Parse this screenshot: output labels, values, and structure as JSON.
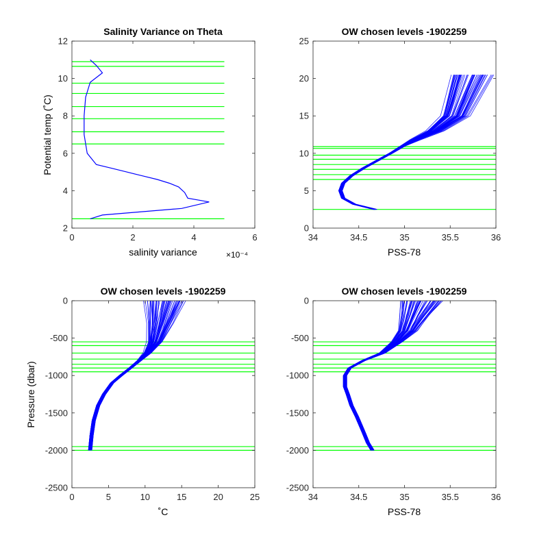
{
  "figure": {
    "background": "#ffffff",
    "data_color": "#0000ff",
    "level_color": "#00ff00"
  },
  "chart_data": [
    {
      "type": "line",
      "title": "Salinity Variance on Theta",
      "xlabel": "salinity variance",
      "ylabel": "Potential temp (˚C)",
      "xlim": [
        0,
        6
      ],
      "ylim": [
        2,
        12
      ],
      "xticks": [
        0,
        2,
        4,
        6
      ],
      "yticks": [
        2,
        4,
        6,
        8,
        10,
        12
      ],
      "x_exponent_label": "×10⁻⁴",
      "series": [
        {
          "x": [
            4.5,
            3.8,
            3.7,
            3.5,
            3.2,
            2.8,
            2.3,
            1.8,
            1.3,
            0.8,
            0.5,
            0.4,
            0.4,
            0.45,
            0.6,
            1.0,
            0.8,
            0.6
          ],
          "y": [
            3.4,
            3.6,
            3.9,
            4.2,
            4.4,
            4.6,
            4.8,
            5.0,
            5.2,
            5.4,
            6.0,
            7.0,
            8.0,
            9.0,
            9.8,
            10.3,
            10.7,
            11.0
          ]
        }
      ],
      "tail": {
        "x": [
          4.5,
          3.6,
          1.0,
          0.6
        ],
        "y": [
          3.4,
          3.05,
          2.7,
          2.5
        ]
      },
      "levels": [
        2.5,
        6.5,
        7.15,
        7.85,
        8.5,
        9.2,
        9.75,
        10.65,
        10.9
      ],
      "level_xrange": [
        0,
        5
      ]
    },
    {
      "type": "line",
      "title": "OW chosen levels -1902259",
      "xlabel": "PSS-78",
      "ylabel": "",
      "xlim": [
        34,
        36
      ],
      "ylim": [
        0,
        25
      ],
      "xticks": [
        34,
        34.5,
        35,
        35.5,
        36
      ],
      "yticks": [
        0,
        5,
        10,
        15,
        20,
        25
      ],
      "series": [
        {
          "name": "",
          "x": [
            34.68,
            34.45,
            34.33,
            34.3,
            34.33,
            34.42,
            34.55,
            34.7,
            34.85,
            34.98,
            35.1,
            35.3,
            35.5,
            35.65
          ],
          "y": [
            2.5,
            3.2,
            4.0,
            5.0,
            6.0,
            7.0,
            8.0,
            9.0,
            10.0,
            11.0,
            11.8,
            13.0,
            15.0,
            20.5
          ]
        }
      ],
      "levels": [
        2.5,
        6.5,
        7.15,
        7.85,
        8.5,
        9.2,
        9.75,
        10.65,
        10.9
      ],
      "level_xrange": [
        34,
        36
      ]
    },
    {
      "type": "line",
      "title": "OW chosen levels -1902259",
      "xlabel": "˚C",
      "ylabel": "Pressure (dbar)",
      "xlim": [
        0,
        25
      ],
      "ylim": [
        -2500,
        0
      ],
      "xticks": [
        0,
        5,
        10,
        15,
        20,
        25
      ],
      "yticks": [
        -2500,
        -2000,
        -1500,
        -1000,
        -500,
        0
      ],
      "series": [
        {
          "name": "",
          "x": [
            2.5,
            2.7,
            3.0,
            3.6,
            4.4,
            5.5,
            6.7,
            8.0,
            9.2,
            10.2,
            11.0,
            11.4,
            11.7
          ],
          "y": [
            -2000,
            -1800,
            -1600,
            -1400,
            -1250,
            -1100,
            -1000,
            -900,
            -800,
            -700,
            -550,
            -300,
            0
          ]
        }
      ],
      "levels": [
        -2000,
        -1950,
        -950,
        -900,
        -850,
        -780,
        -700,
        -600,
        -550
      ],
      "level_xrange": [
        0,
        25
      ]
    },
    {
      "type": "line",
      "title": "OW chosen levels -1902259",
      "xlabel": "PSS-78",
      "ylabel": "",
      "xlim": [
        34,
        36
      ],
      "ylim": [
        -2500,
        0
      ],
      "xticks": [
        34,
        34.5,
        35,
        35.5,
        36
      ],
      "yticks": [
        -2500,
        -2000,
        -1500,
        -1000,
        -500,
        0
      ],
      "series": [
        {
          "name": "",
          "x": [
            34.65,
            34.6,
            34.55,
            34.48,
            34.42,
            34.38,
            34.35,
            34.35,
            34.4,
            34.55,
            34.75,
            34.9,
            35.0,
            35.05,
            35.1
          ],
          "y": [
            -2000,
            -1900,
            -1750,
            -1550,
            -1400,
            -1250,
            -1150,
            -1000,
            -900,
            -800,
            -700,
            -550,
            -400,
            -200,
            0
          ]
        }
      ],
      "levels": [
        -2000,
        -1950,
        -950,
        -900,
        -850,
        -780,
        -700,
        -600,
        -550
      ],
      "level_xrange": [
        34,
        36
      ]
    }
  ]
}
